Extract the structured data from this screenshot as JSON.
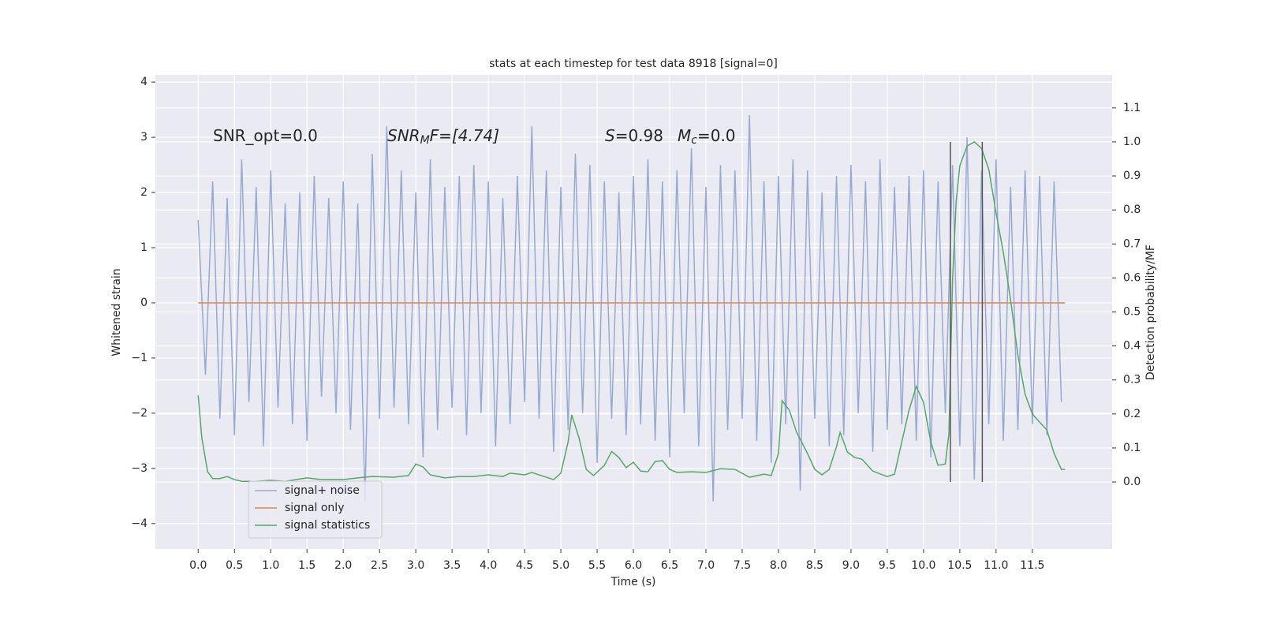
{
  "chart_data": {
    "type": "line",
    "title": "stats at each timestep for test data 8918 [signal=0]",
    "x_label": "Time (s)",
    "y_label": "Whitened strain",
    "y2_label": "Detection probability/MF",
    "xlim": [
      -0.59,
      12.6
    ],
    "ylim": [
      -4.46,
      4.13
    ],
    "y2lim": [
      -0.197,
      1.197
    ],
    "grid": true,
    "legend": "lower left",
    "xticks": [
      {
        "value": 0,
        "label": "0.0"
      },
      {
        "value": 0.5,
        "label": "0.5"
      },
      {
        "value": 1,
        "label": "1.0"
      },
      {
        "value": 1.5,
        "label": "1.5"
      },
      {
        "value": 2,
        "label": "2.0"
      },
      {
        "value": 2.5,
        "label": "2.5"
      },
      {
        "value": 3,
        "label": "3.0"
      },
      {
        "value": 3.5,
        "label": "3.5"
      },
      {
        "value": 4,
        "label": "4.0"
      },
      {
        "value": 4.5,
        "label": "4.5"
      },
      {
        "value": 5,
        "label": "5.0"
      },
      {
        "value": 5.5,
        "label": "5.5"
      },
      {
        "value": 6,
        "label": "6.0"
      },
      {
        "value": 6.5,
        "label": "6.5"
      },
      {
        "value": 7,
        "label": "7.0"
      },
      {
        "value": 7.5,
        "label": "7.5"
      },
      {
        "value": 8,
        "label": "8.0"
      },
      {
        "value": 8.5,
        "label": "8.5"
      },
      {
        "value": 9,
        "label": "9.0"
      },
      {
        "value": 9.5,
        "label": "9.5"
      },
      {
        "value": 10,
        "label": "10.0"
      },
      {
        "value": 10.5,
        "label": "10.5"
      },
      {
        "value": 11,
        "label": "11.0"
      },
      {
        "value": 11.5,
        "label": "11.5"
      }
    ],
    "yticks": [
      {
        "value": -4,
        "label": "−4"
      },
      {
        "value": -3,
        "label": "−3"
      },
      {
        "value": -2,
        "label": "−2"
      },
      {
        "value": -1,
        "label": "−1"
      },
      0,
      1,
      2,
      3,
      4
    ],
    "y2ticks": [
      {
        "value": 0,
        "label": "0.0"
      },
      {
        "value": 0.1,
        "label": "0.1"
      },
      {
        "value": 0.2,
        "label": "0.2"
      },
      {
        "value": 0.3,
        "label": "0.3"
      },
      {
        "value": 0.4,
        "label": "0.4"
      },
      {
        "value": 0.5,
        "label": "0.5"
      },
      {
        "value": 0.6,
        "label": "0.6"
      },
      {
        "value": 0.7,
        "label": "0.7"
      },
      {
        "value": 0.8,
        "label": "0.8"
      },
      {
        "value": 0.9,
        "label": "0.9"
      },
      {
        "value": 1,
        "label": "1.0"
      },
      {
        "value": 1.1,
        "label": "1.1"
      }
    ],
    "annotations": [
      {
        "parts": [
          "SNR_opt=0.0"
        ]
      },
      {
        "parts": [
          "SNR",
          "M",
          "F=[4.74]"
        ]
      },
      {
        "parts": [
          "S",
          "=0.98"
        ]
      },
      {
        "parts": [
          "M",
          "c",
          "=0.0"
        ]
      }
    ],
    "vlines": {
      "color": "#555555",
      "x": [
        10.37,
        10.81
      ],
      "from": [
        0,
        0
      ],
      "to": [
        1.0,
        1.0
      ]
    },
    "series": [
      {
        "name": "signal+ noise",
        "color": "#98aad4",
        "x": [
          0.0,
          0.1,
          0.2,
          0.3,
          0.4,
          0.5,
          0.6,
          0.7,
          0.8,
          0.9,
          1.0,
          1.1,
          1.2,
          1.3,
          1.4,
          1.5,
          1.6,
          1.7,
          1.8,
          1.9,
          2.0,
          2.1,
          2.2,
          2.3,
          2.4,
          2.5,
          2.6,
          2.7,
          2.8,
          2.9,
          3.0,
          3.1,
          3.2,
          3.3,
          3.4,
          3.5,
          3.6,
          3.7,
          3.8,
          3.9,
          4.0,
          4.1,
          4.2,
          4.3,
          4.4,
          4.5,
          4.6,
          4.7,
          4.8,
          4.9,
          5.0,
          5.1,
          5.2,
          5.3,
          5.4,
          5.5,
          5.6,
          5.7,
          5.8,
          5.9,
          6.0,
          6.1,
          6.2,
          6.3,
          6.4,
          6.5,
          6.6,
          6.7,
          6.8,
          6.9,
          7.0,
          7.1,
          7.2,
          7.3,
          7.4,
          7.5,
          7.6,
          7.7,
          7.8,
          7.9,
          8.0,
          8.1,
          8.2,
          8.3,
          8.4,
          8.5,
          8.6,
          8.7,
          8.8,
          8.9,
          9.0,
          9.1,
          9.2,
          9.3,
          9.4,
          9.5,
          9.6,
          9.7,
          9.8,
          9.9,
          10.0,
          10.1,
          10.2,
          10.3,
          10.4,
          10.5,
          10.6,
          10.7,
          10.8,
          10.9,
          11.0,
          11.1,
          11.2,
          11.3,
          11.4,
          11.5,
          11.6,
          11.7,
          11.8,
          11.9
        ],
        "values": [
          1.5,
          -1.3,
          2.2,
          -2.1,
          1.9,
          -2.4,
          2.6,
          -1.8,
          2.1,
          -2.6,
          2.4,
          -1.9,
          1.8,
          -2.2,
          2.0,
          -2.5,
          2.3,
          -1.7,
          1.9,
          -2.0,
          2.2,
          -2.3,
          1.8,
          -3.6,
          2.7,
          -2.1,
          3.2,
          -1.9,
          2.4,
          -2.2,
          2.0,
          -2.8,
          2.6,
          -2.3,
          2.1,
          -1.9,
          2.3,
          -2.4,
          2.5,
          -2.0,
          2.2,
          -2.6,
          1.9,
          -2.2,
          2.3,
          -1.8,
          3.2,
          -2.1,
          2.4,
          -2.7,
          2.1,
          -2.3,
          2.7,
          -2.0,
          2.5,
          -2.9,
          2.2,
          -2.1,
          2.0,
          -2.4,
          2.3,
          -2.2,
          2.6,
          -2.5,
          2.2,
          -2.8,
          2.4,
          -2.0,
          2.8,
          -2.6,
          2.1,
          -3.6,
          2.5,
          -2.3,
          2.4,
          -2.1,
          3.4,
          -2.5,
          2.2,
          -2.9,
          2.3,
          -2.2,
          2.6,
          -3.4,
          2.4,
          -2.1,
          2.0,
          -2.6,
          2.3,
          -2.4,
          2.5,
          -2.0,
          2.2,
          -2.7,
          2.6,
          -2.3,
          2.1,
          -2.2,
          2.3,
          -2.5,
          2.4,
          -2.8,
          2.2,
          -2.0,
          2.5,
          -2.6,
          3.0,
          -3.2,
          2.4,
          -2.2,
          2.6,
          -2.5,
          2.1,
          -2.3,
          2.4,
          -2.2,
          2.3,
          -2.4,
          2.2,
          -1.8
        ]
      },
      {
        "name": "signal only",
        "color": "#dd8452",
        "x": [
          0,
          11.95
        ],
        "values": [
          0,
          0
        ]
      },
      {
        "name": "signal statistics",
        "color": "#55a868",
        "axis": "y2",
        "x": [
          0,
          0.05,
          0.13,
          0.2,
          0.3,
          0.4,
          0.5,
          0.6,
          0.8,
          1.0,
          1.2,
          1.5,
          1.7,
          2.0,
          2.2,
          2.4,
          2.7,
          2.9,
          3.0,
          3.1,
          3.2,
          3.4,
          3.6,
          3.8,
          4.0,
          4.2,
          4.3,
          4.5,
          4.6,
          4.8,
          4.9,
          5.0,
          5.1,
          5.15,
          5.25,
          5.35,
          5.45,
          5.6,
          5.7,
          5.8,
          5.9,
          6.0,
          6.1,
          6.2,
          6.3,
          6.4,
          6.5,
          6.6,
          6.8,
          7.0,
          7.2,
          7.4,
          7.6,
          7.8,
          7.9,
          8.0,
          8.05,
          8.15,
          8.25,
          8.4,
          8.5,
          8.6,
          8.7,
          8.8,
          8.85,
          8.95,
          9.05,
          9.15,
          9.3,
          9.5,
          9.6,
          9.7,
          9.8,
          9.9,
          10.0,
          10.1,
          10.2,
          10.3,
          10.35,
          10.4,
          10.45,
          10.5,
          10.6,
          10.7,
          10.8,
          10.9,
          11.0,
          11.1,
          11.2,
          11.3,
          11.4,
          11.5,
          11.6,
          11.7,
          11.8,
          11.9,
          11.95
        ],
        "values": [
          0.255,
          0.13,
          0.03,
          0.01,
          0.01,
          0.016,
          0.007,
          0.002,
          0.002,
          0.005,
          0.002,
          0.012,
          0.007,
          0.007,
          0.012,
          0.016,
          0.014,
          0.019,
          0.053,
          0.044,
          0.021,
          0.012,
          0.016,
          0.016,
          0.021,
          0.016,
          0.026,
          0.021,
          0.028,
          0.014,
          0.007,
          0.026,
          0.118,
          0.197,
          0.13,
          0.037,
          0.019,
          0.049,
          0.09,
          0.072,
          0.042,
          0.058,
          0.032,
          0.03,
          0.06,
          0.063,
          0.037,
          0.028,
          0.03,
          0.028,
          0.039,
          0.037,
          0.014,
          0.023,
          0.019,
          0.084,
          0.239,
          0.211,
          0.146,
          0.084,
          0.037,
          0.021,
          0.037,
          0.104,
          0.146,
          0.088,
          0.072,
          0.067,
          0.032,
          0.016,
          0.023,
          0.118,
          0.211,
          0.281,
          0.234,
          0.118,
          0.049,
          0.053,
          0.142,
          0.594,
          0.826,
          0.93,
          0.988,
          1.0,
          0.981,
          0.919,
          0.791,
          0.675,
          0.536,
          0.374,
          0.258,
          0.2,
          0.176,
          0.153,
          0.084,
          0.037,
          0.037
        ]
      }
    ]
  }
}
